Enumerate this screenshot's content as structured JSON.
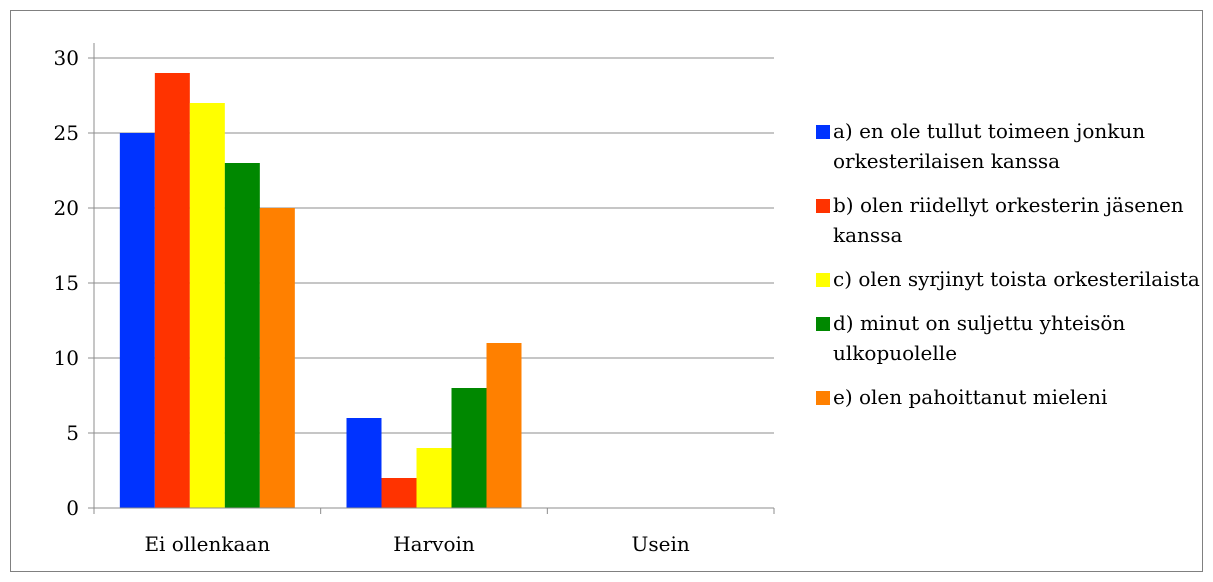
{
  "chart_data": {
    "type": "bar",
    "title": "",
    "xlabel": "",
    "ylabel": "",
    "categories": [
      "Ei ollenkaan",
      "Harvoin",
      "Usein"
    ],
    "ylim": [
      0,
      30
    ],
    "yticks": [
      0,
      5,
      10,
      15,
      20,
      25,
      30
    ],
    "grid": true,
    "legend_position": "right",
    "series": [
      {
        "name": "a) en ole tullut toimeen jonkun orkesterilaisen kanssa",
        "color": "#0033ff",
        "values": [
          25,
          6,
          0
        ]
      },
      {
        "name": "b) olen riidellyt orkesterin jäsenen kanssa",
        "color": "#ff3300",
        "values": [
          29,
          2,
          0
        ]
      },
      {
        "name": "c) olen syrjinyt toista orkesterilaista",
        "color": "#ffff00",
        "values": [
          27,
          4,
          0
        ]
      },
      {
        "name": "d) minut on suljettu yhteisön ulkopuolelle",
        "color": "#008800",
        "values": [
          23,
          8,
          0
        ]
      },
      {
        "name": "e) olen pahoittanut mieleni",
        "color": "#ff8000",
        "values": [
          20,
          11,
          0
        ]
      }
    ]
  }
}
